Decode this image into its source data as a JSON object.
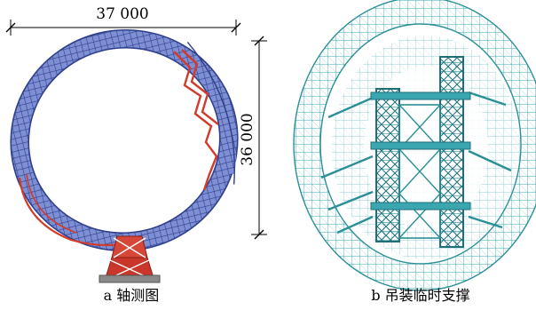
{
  "left_panel": {
    "width_dimension": "37 000",
    "height_dimension": "36 000",
    "caption": "a 轴测图"
  },
  "right_panel": {
    "caption": "b 吊装临时支撑"
  },
  "colors": {
    "ring_structure": "#4a5fb0",
    "ring_dark": "#2e3f8c",
    "bracing_red": "#d23a2a",
    "temp_support_cyan": "#3aa7b0",
    "temp_support_dark": "#1f6f78",
    "dimension_line": "#000000"
  }
}
